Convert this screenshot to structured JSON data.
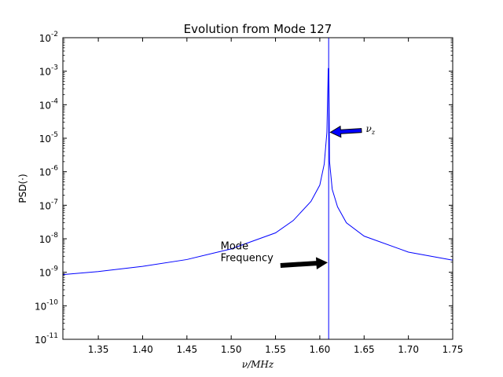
{
  "chart_data": {
    "type": "line",
    "title": "Evolution from Mode 127",
    "xlabel": "ν/MHz",
    "ylabel": "PSD(·)",
    "xlim": [
      1.31,
      1.75
    ],
    "ylim_log10": [
      -11,
      -2
    ],
    "yscale": "log",
    "x_ticks": [
      "1.35",
      "1.40",
      "1.45",
      "1.50",
      "1.55",
      "1.60",
      "1.65",
      "1.70",
      "1.75"
    ],
    "y_ticks": [
      {
        "base": "10",
        "exp": "-11"
      },
      {
        "base": "10",
        "exp": "-10"
      },
      {
        "base": "10",
        "exp": "-9"
      },
      {
        "base": "10",
        "exp": "-8"
      },
      {
        "base": "10",
        "exp": "-7"
      },
      {
        "base": "10",
        "exp": "-6"
      },
      {
        "base": "10",
        "exp": "-5"
      },
      {
        "base": "10",
        "exp": "-4"
      },
      {
        "base": "10",
        "exp": "-3"
      },
      {
        "base": "10",
        "exp": "-2"
      }
    ],
    "series": [
      {
        "color": "#0000ff",
        "x": [
          1.31,
          1.35,
          1.4,
          1.45,
          1.5,
          1.55,
          1.57,
          1.59,
          1.6,
          1.605,
          1.608,
          1.6095,
          1.6102,
          1.611,
          1.614,
          1.62,
          1.63,
          1.65,
          1.7,
          1.75
        ],
        "y": [
          8.5e-10,
          1.05e-09,
          1.5e-09,
          2.4e-09,
          5e-09,
          1.5e-08,
          3.5e-08,
          1.3e-07,
          4e-07,
          1.7e-06,
          1.5e-05,
          0.0012,
          0.0012,
          2e-06,
          3e-07,
          9e-08,
          3e-08,
          1.2e-08,
          4e-09,
          2.3e-09
        ]
      }
    ],
    "vline": {
      "x": 1.61,
      "color": "#0000ff"
    },
    "annotations": [
      {
        "text_lines": [
          "Mode",
          "Frequency"
        ],
        "text_x": 1.488,
        "text_y": 4.8e-09,
        "arrow_from": [
          1.556,
          1.6e-09
        ],
        "arrow_to": [
          1.608,
          1.95e-09
        ],
        "arrow_color": "#000000"
      },
      {
        "text": "νz",
        "text_x": 1.652,
        "text_y": 1.55e-05,
        "arrow_from": [
          1.647,
          1.7e-05
        ],
        "arrow_to": [
          1.612,
          1.5e-05
        ],
        "arrow_color": "#0000ff"
      }
    ],
    "grid": false,
    "legend": "none"
  }
}
